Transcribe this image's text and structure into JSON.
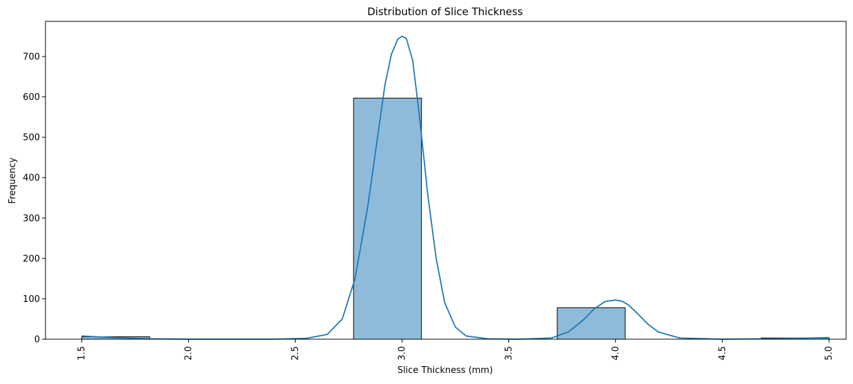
{
  "chart_data": {
    "type": "bar",
    "title": "Distribution of Slice Thickness",
    "xlabel": "Slice Thickness (mm)",
    "ylabel": "Frequency",
    "xlim": [
      1.33,
      5.08
    ],
    "ylim": [
      0,
      787
    ],
    "xticks": [
      "1.5",
      "2.0",
      "2.5",
      "3.0",
      "3.5",
      "4.0",
      "4.5",
      "5.0"
    ],
    "xtick_values": [
      1.5,
      2.0,
      2.5,
      3.0,
      3.5,
      4.0,
      4.5,
      5.0
    ],
    "yticks": [
      "0",
      "100",
      "200",
      "300",
      "400",
      "500",
      "600",
      "700"
    ],
    "ytick_values": [
      0,
      100,
      200,
      300,
      400,
      500,
      600,
      700
    ],
    "bins": [
      {
        "x0": 1.5,
        "x1": 1.818,
        "count": 6
      },
      {
        "x0": 1.818,
        "x1": 2.136,
        "count": 0
      },
      {
        "x0": 2.136,
        "x1": 2.455,
        "count": 0
      },
      {
        "x0": 2.455,
        "x1": 2.773,
        "count": 0
      },
      {
        "x0": 2.773,
        "x1": 3.091,
        "count": 597
      },
      {
        "x0": 3.091,
        "x1": 3.409,
        "count": 0
      },
      {
        "x0": 3.409,
        "x1": 3.727,
        "count": 0
      },
      {
        "x0": 3.727,
        "x1": 4.045,
        "count": 78
      },
      {
        "x0": 4.045,
        "x1": 4.364,
        "count": 0
      },
      {
        "x0": 4.364,
        "x1": 4.682,
        "count": 0
      },
      {
        "x0": 4.682,
        "x1": 5.0,
        "count": 3
      }
    ],
    "kde": {
      "x": [
        1.5,
        1.6,
        1.7,
        1.8,
        2.0,
        2.2,
        2.4,
        2.55,
        2.65,
        2.72,
        2.78,
        2.84,
        2.88,
        2.92,
        2.95,
        2.98,
        3.0,
        3.02,
        3.05,
        3.08,
        3.12,
        3.16,
        3.2,
        3.25,
        3.3,
        3.4,
        3.55,
        3.7,
        3.78,
        3.85,
        3.9,
        3.95,
        4.0,
        4.03,
        4.06,
        4.1,
        4.15,
        4.2,
        4.3,
        4.5,
        4.7,
        4.85,
        5.0
      ],
      "y": [
        8,
        5,
        3,
        1,
        0,
        0,
        0,
        2,
        12,
        50,
        150,
        330,
        480,
        630,
        705,
        743,
        750,
        745,
        690,
        560,
        360,
        200,
        90,
        30,
        8,
        1,
        0,
        3,
        18,
        48,
        75,
        93,
        97,
        94,
        85,
        65,
        38,
        18,
        3,
        0,
        1,
        2,
        4
      ]
    },
    "bar_color": "#8fbbda",
    "bar_edge_color": "#000000",
    "line_color": "#1f77b4",
    "grid": false,
    "legend": "none"
  }
}
